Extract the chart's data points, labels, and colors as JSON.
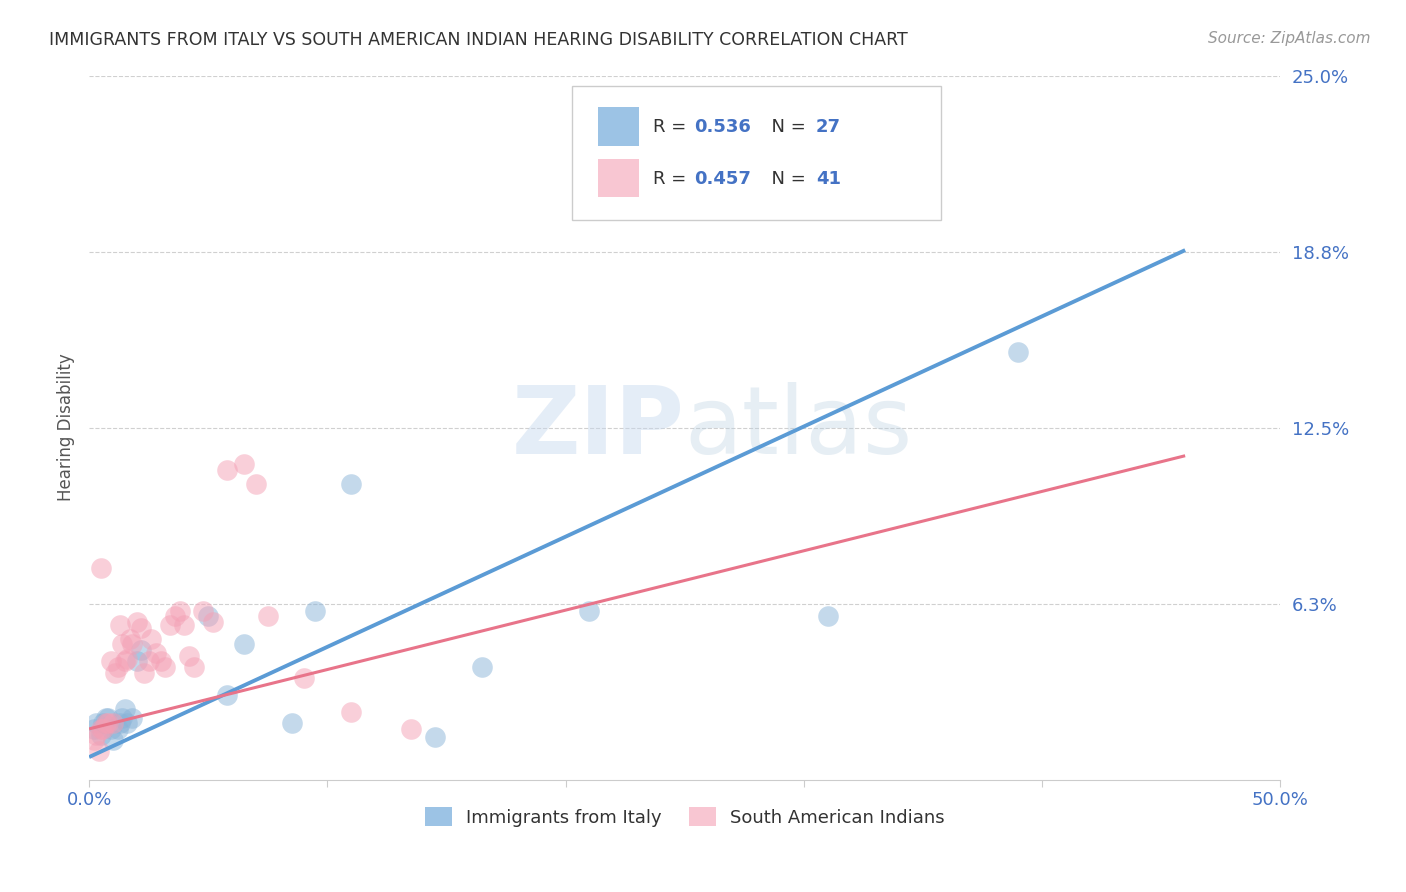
{
  "title": "IMMIGRANTS FROM ITALY VS SOUTH AMERICAN INDIAN HEARING DISABILITY CORRELATION CHART",
  "source": "Source: ZipAtlas.com",
  "ylabel": "Hearing Disability",
  "xlabel": "",
  "xlim": [
    0.0,
    0.5
  ],
  "ylim": [
    0.0,
    0.25
  ],
  "xticks": [
    0.0,
    0.1,
    0.2,
    0.3,
    0.4,
    0.5
  ],
  "xticklabels": [
    "0.0%",
    "",
    "",
    "",
    "",
    "50.0%"
  ],
  "yticks": [
    0.0,
    0.0625,
    0.125,
    0.1875,
    0.25
  ],
  "yticklabels": [
    "",
    "6.3%",
    "12.5%",
    "18.8%",
    "25.0%"
  ],
  "italy_color": "#8ab4d8",
  "sa_color": "#f4a0b5",
  "italy_R": 0.536,
  "italy_N": 27,
  "sa_R": 0.457,
  "sa_N": 41,
  "italy_scatter_x": [
    0.002,
    0.003,
    0.005,
    0.006,
    0.007,
    0.008,
    0.009,
    0.01,
    0.012,
    0.013,
    0.014,
    0.015,
    0.016,
    0.018,
    0.02,
    0.022,
    0.05,
    0.058,
    0.065,
    0.085,
    0.095,
    0.11,
    0.145,
    0.165,
    0.21,
    0.31,
    0.39
  ],
  "italy_scatter_y": [
    0.018,
    0.02,
    0.016,
    0.02,
    0.022,
    0.022,
    0.018,
    0.014,
    0.018,
    0.02,
    0.022,
    0.025,
    0.02,
    0.022,
    0.042,
    0.046,
    0.058,
    0.03,
    0.048,
    0.02,
    0.06,
    0.105,
    0.015,
    0.04,
    0.06,
    0.058,
    0.152
  ],
  "sa_scatter_x": [
    0.002,
    0.003,
    0.005,
    0.006,
    0.007,
    0.008,
    0.009,
    0.01,
    0.011,
    0.012,
    0.013,
    0.014,
    0.015,
    0.016,
    0.017,
    0.018,
    0.02,
    0.022,
    0.023,
    0.025,
    0.026,
    0.028,
    0.03,
    0.032,
    0.034,
    0.036,
    0.038,
    0.04,
    0.042,
    0.044,
    0.048,
    0.052,
    0.058,
    0.065,
    0.07,
    0.075,
    0.09,
    0.11,
    0.135,
    0.005,
    0.004
  ],
  "sa_scatter_y": [
    0.014,
    0.016,
    0.018,
    0.018,
    0.02,
    0.02,
    0.042,
    0.02,
    0.038,
    0.04,
    0.055,
    0.048,
    0.042,
    0.043,
    0.05,
    0.048,
    0.056,
    0.054,
    0.038,
    0.042,
    0.05,
    0.045,
    0.042,
    0.04,
    0.055,
    0.058,
    0.06,
    0.055,
    0.044,
    0.04,
    0.06,
    0.056,
    0.11,
    0.112,
    0.105,
    0.058,
    0.036,
    0.024,
    0.018,
    0.075,
    0.01
  ],
  "italy_line_x": [
    0.0,
    0.46
  ],
  "italy_line_y": [
    0.008,
    0.188
  ],
  "sa_line_x": [
    0.0,
    0.46
  ],
  "sa_line_y": [
    0.018,
    0.115
  ],
  "background_color": "#ffffff",
  "grid_color": "#d0d0d0",
  "axis_color": "#4472c4",
  "title_color": "#333333",
  "watermark_zip": "ZIP",
  "watermark_atlas": "atlas",
  "legend_italy_color": "#5b9bd5",
  "legend_sa_color": "#f4a0b5",
  "bottom_legend_italy": "Immigrants from Italy",
  "bottom_legend_sa": "South American Indians"
}
